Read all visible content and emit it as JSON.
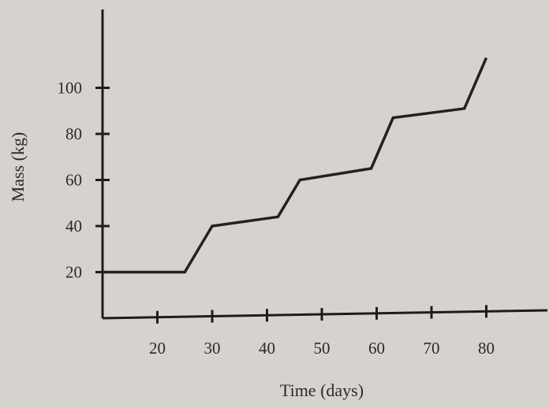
{
  "chart_data": {
    "type": "line",
    "title": "",
    "xlabel": "Time (days)",
    "ylabel": "Mass (kg)",
    "xlim": [
      10,
      85
    ],
    "ylim": [
      0,
      120
    ],
    "x_ticks": [
      20,
      30,
      40,
      50,
      60,
      70,
      80
    ],
    "y_ticks": [
      20,
      40,
      60,
      80,
      100
    ],
    "grid": false,
    "series": [
      {
        "x": [
          10,
          25,
          30,
          42,
          46,
          59,
          63,
          76,
          80
        ],
        "y": [
          20,
          20,
          40,
          44,
          60,
          65,
          87,
          91,
          113
        ]
      }
    ],
    "colors": {
      "line": "#222222",
      "background": "#d6d3ce"
    }
  }
}
